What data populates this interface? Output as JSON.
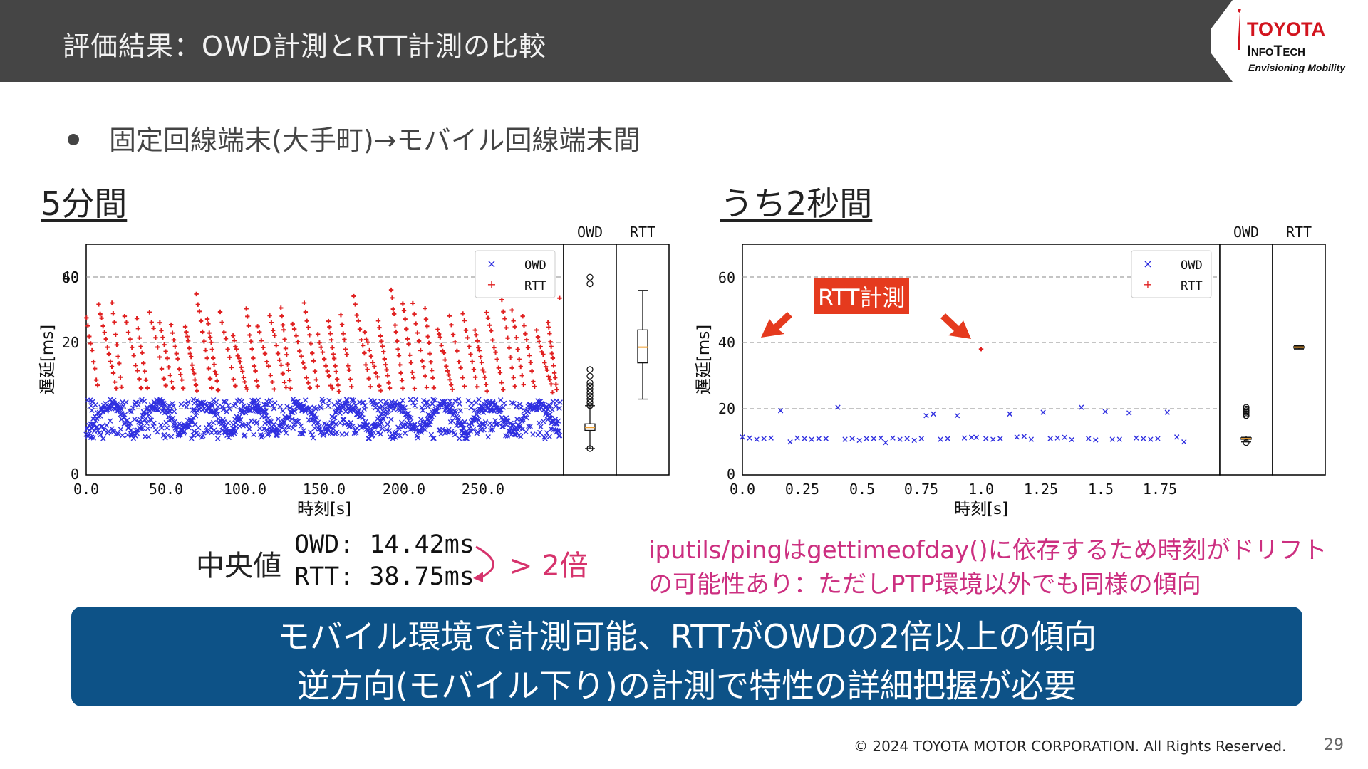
{
  "header": {
    "title": "評価結果：OWD計測とRTT計測の比較"
  },
  "logo": {
    "line1": "TOYOTA",
    "line2": "InfoTech",
    "tagline": "Envisioning Mobility"
  },
  "bullet": "固定回線端末(大手町)→モバイル回線端末間",
  "colors": {
    "header_bg": "#454545",
    "owd": "#2f2fe0",
    "rtt": "#e02020",
    "accent": "#cc2f80",
    "summary_bg": "#0d5287",
    "callout": "#e53a1e"
  },
  "left_panel": {
    "title": "5分間",
    "xlabel": "時刻[s]",
    "ylabel": "遅延[ms]",
    "legend": [
      "OWD",
      "RTT"
    ],
    "box_labels": [
      "OWD",
      "RTT"
    ]
  },
  "right_panel": {
    "title": "うち2秒間",
    "xlabel": "時刻[s]",
    "ylabel": "遅延[ms]",
    "legend": [
      "OWD",
      "RTT"
    ],
    "box_labels": [
      "OWD",
      "RTT"
    ],
    "callout": "RTT計測"
  },
  "chart_data": [
    {
      "type": "scatter",
      "title": "5分間",
      "xlabel": "時刻[s]",
      "ylabel": "遅延[ms]",
      "xlim": [
        0,
        300
      ],
      "ylim": [
        0,
        70
      ],
      "xticks": [
        "0.0",
        "50.0",
        "100.0",
        "150.0",
        "200.0",
        "250.0"
      ],
      "yticks": [
        "0",
        "20",
        "40",
        "60"
      ],
      "grid": "horizontal dashed at 20, 40, 60",
      "legend_position": "top-right",
      "series": [
        {
          "name": "OWD",
          "marker": "x",
          "pattern": "dense bands oscillating between ~10 and ~28 ms, mostly 10-24 ms",
          "outliers": [
            [
              248,
              60
            ],
            [
              250,
              58
            ]
          ]
        },
        {
          "name": "RTT",
          "marker": "+",
          "pattern": "sawtooth descending streaks from ~55 ms down to ~22 ms"
        }
      ],
      "boxplots": [
        {
          "name": "OWD",
          "median": 14.42,
          "q1": 13.5,
          "q3": 15.5,
          "whisker_low": 8,
          "whisker_high": 21,
          "outliers": [
            8,
            21,
            22,
            23,
            24,
            25,
            26,
            27,
            28,
            30,
            32,
            58,
            60
          ]
        },
        {
          "name": "RTT",
          "median": 38.75,
          "q1": 34,
          "q3": 44,
          "whisker_low": 23,
          "whisker_high": 56
        }
      ]
    },
    {
      "type": "scatter",
      "title": "うち2秒間",
      "xlabel": "時刻[s]",
      "ylabel": "遅延[ms]",
      "xlim": [
        0,
        2.0
      ],
      "ylim": [
        0,
        70
      ],
      "xticks": [
        "0.0",
        "0.25",
        "0.5",
        "0.75",
        "1.0",
        "1.25",
        "1.5",
        "1.75"
      ],
      "yticks": [
        "0",
        "20",
        "40",
        "60"
      ],
      "grid": "horizontal dashed at 20, 40, 60",
      "legend_position": "top-right",
      "series": [
        {
          "name": "OWD",
          "marker": "x",
          "points": [
            [
              0.0,
              11.5
            ],
            [
              0.03,
              11.2
            ],
            [
              0.06,
              10.8
            ],
            [
              0.09,
              11
            ],
            [
              0.12,
              11.2
            ],
            [
              0.16,
              19.5
            ],
            [
              0.2,
              10
            ],
            [
              0.23,
              11.2
            ],
            [
              0.26,
              11
            ],
            [
              0.29,
              10.8
            ],
            [
              0.32,
              11
            ],
            [
              0.35,
              11
            ],
            [
              0.4,
              20.5
            ],
            [
              0.43,
              10.8
            ],
            [
              0.46,
              11
            ],
            [
              0.49,
              10.5
            ],
            [
              0.52,
              11
            ],
            [
              0.55,
              11
            ],
            [
              0.58,
              11.2
            ],
            [
              0.6,
              9.8
            ],
            [
              0.63,
              11.2
            ],
            [
              0.66,
              10.8
            ],
            [
              0.69,
              11
            ],
            [
              0.72,
              10.5
            ],
            [
              0.75,
              11
            ],
            [
              0.77,
              18
            ],
            [
              0.8,
              18.5
            ],
            [
              0.83,
              10.8
            ],
            [
              0.86,
              11
            ],
            [
              0.9,
              18
            ],
            [
              0.93,
              11.2
            ],
            [
              0.96,
              11.4
            ],
            [
              0.98,
              11.4
            ],
            [
              1.02,
              11
            ],
            [
              1.05,
              10.8
            ],
            [
              1.08,
              11
            ],
            [
              1.12,
              18.5
            ],
            [
              1.15,
              11.5
            ],
            [
              1.18,
              11.7
            ],
            [
              1.21,
              10.8
            ],
            [
              1.26,
              19
            ],
            [
              1.29,
              11
            ],
            [
              1.32,
              11.2
            ],
            [
              1.35,
              11.4
            ],
            [
              1.38,
              10.7
            ],
            [
              1.42,
              20.5
            ],
            [
              1.45,
              11
            ],
            [
              1.48,
              10.6
            ],
            [
              1.52,
              19.2
            ],
            [
              1.55,
              10.8
            ],
            [
              1.58,
              10.8
            ],
            [
              1.62,
              18.8
            ],
            [
              1.65,
              11.2
            ],
            [
              1.68,
              11
            ],
            [
              1.71,
              10.8
            ],
            [
              1.74,
              11
            ],
            [
              1.78,
              19
            ],
            [
              1.82,
              11.5
            ],
            [
              1.85,
              10
            ]
          ]
        },
        {
          "name": "RTT",
          "marker": "+",
          "points": [
            [
              1.0,
              38.2
            ]
          ]
        }
      ],
      "boxplots": [
        {
          "name": "OWD",
          "median": 11,
          "q1": 10.8,
          "q3": 11.3,
          "whisker_low": 10,
          "whisker_high": 11.7,
          "outliers": [
            9.8,
            18,
            18.5,
            19,
            19.5,
            20,
            20.5
          ]
        },
        {
          "name": "RTT",
          "median": 38.75,
          "q1": 38.5,
          "q3": 39,
          "whisker_low": 38.2,
          "whisker_high": 39.2
        }
      ]
    }
  ],
  "stats": {
    "label": "中央値",
    "owd": "OWD: 14.42ms",
    "rtt": "RTT: 38.75ms",
    "ratio": "> 2倍"
  },
  "notes": [
    "iputils/pingはgettimeofday()に依存するため時刻がドリフト",
    "の可能性あり：ただしPTP環境以外でも同様の傾向"
  ],
  "summary": [
    "モバイル環境で計測可能、RTTがOWDの2倍以上の傾向",
    "逆方向(モバイル下り)の計測で特性の詳細把握が必要"
  ],
  "footer": {
    "copyright": "© 2024 TOYOTA MOTOR CORPORATION. All Rights Reserved.",
    "page": "29"
  }
}
